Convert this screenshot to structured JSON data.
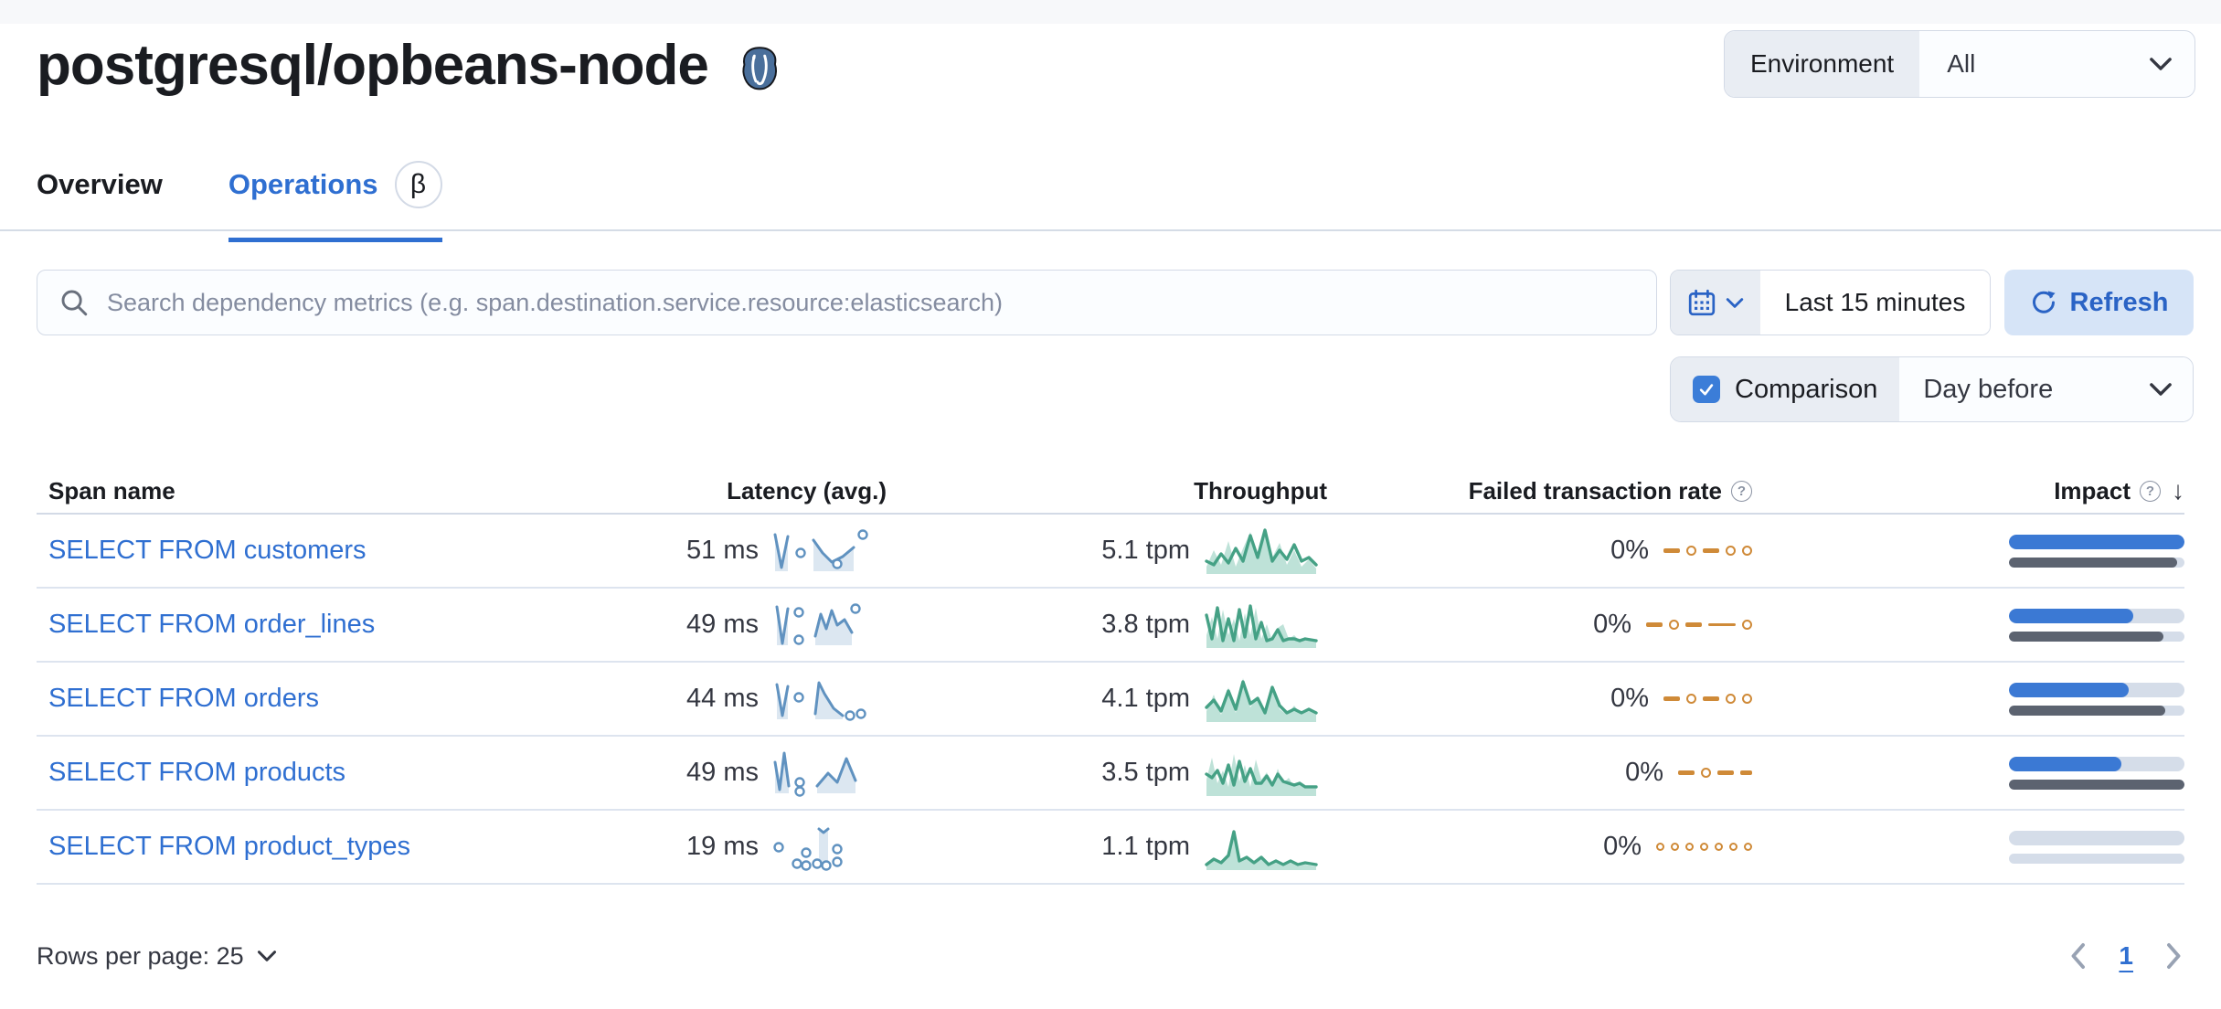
{
  "header": {
    "title": "postgresql/opbeans-node",
    "environment_label": "Environment",
    "environment_value": "All"
  },
  "tabs": {
    "overview": "Overview",
    "operations": "Operations",
    "beta_badge": "β"
  },
  "controls": {
    "search_placeholder": "Search dependency metrics (e.g. span.destination.service.resource:elasticsearch)",
    "time_range": "Last 15 minutes",
    "refresh_label": "Refresh",
    "comparison_label": "Comparison",
    "comparison_value": "Day before",
    "comparison_checked": true
  },
  "table": {
    "headers": {
      "span_name": "Span name",
      "latency": "Latency (avg.)",
      "throughput": "Throughput",
      "failed_rate": "Failed transaction rate",
      "impact": "Impact"
    },
    "sort_glyph": "↓",
    "rows": [
      {
        "name": "SELECT FROM customers",
        "latency": "51 ms",
        "throughput": "5.1 tpm",
        "failed": "0%",
        "latency_spark": {
          "segs": [
            [
              [
                2,
                10
              ],
              [
                9,
                46
              ],
              [
                16,
                12
              ]
            ],
            [
              [
                44,
                16
              ],
              [
                54,
                30
              ],
              [
                64,
                40
              ],
              [
                76,
                34
              ],
              [
                88,
                24
              ]
            ]
          ],
          "dots": [
            [
              30,
              30
            ],
            [
              70,
              42
            ],
            [
              98,
              10
            ]
          ]
        },
        "throughput_spark": {
          "area": [
            [
              2,
              46
            ],
            [
              10,
              28
            ],
            [
              18,
              44
            ],
            [
              26,
              18
            ],
            [
              34,
              46
            ],
            [
              42,
              26
            ],
            [
              50,
              8
            ],
            [
              58,
              38
            ],
            [
              66,
              10
            ],
            [
              74,
              36
            ],
            [
              82,
              20
            ],
            [
              90,
              44
            ],
            [
              98,
              28
            ],
            [
              106,
              46
            ],
            [
              114,
              38
            ],
            [
              122,
              48
            ]
          ],
          "line": [
            [
              2,
              40
            ],
            [
              10,
              44
            ],
            [
              18,
              32
            ],
            [
              26,
              42
            ],
            [
              34,
              26
            ],
            [
              42,
              40
            ],
            [
              50,
              12
            ],
            [
              58,
              36
            ],
            [
              66,
              6
            ],
            [
              74,
              40
            ],
            [
              82,
              28
            ],
            [
              90,
              38
            ],
            [
              98,
              22
            ],
            [
              106,
              40
            ],
            [
              114,
              36
            ],
            [
              122,
              44
            ]
          ]
        },
        "failed_spark": [
          "dash",
          "dot",
          "dash",
          "dot",
          "dot"
        ],
        "impact": {
          "current": 100,
          "previous": 96
        }
      },
      {
        "name": "SELECT FROM order_lines",
        "latency": "49 ms",
        "throughput": "3.8 tpm",
        "failed": "0%",
        "latency_spark": {
          "segs": [
            [
              [
                4,
                8
              ],
              [
                10,
                48
              ],
              [
                16,
                10
              ]
            ],
            [
              [
                46,
                40
              ],
              [
                52,
                16
              ],
              [
                58,
                32
              ],
              [
                64,
                12
              ],
              [
                70,
                28
              ],
              [
                78,
                22
              ],
              [
                86,
                36
              ]
            ]
          ],
          "dots": [
            [
              28,
              14
            ],
            [
              28,
              44
            ],
            [
              90,
              10
            ]
          ]
        },
        "throughput_spark": {
          "area": [
            [
              2,
              40
            ],
            [
              8,
              20
            ],
            [
              14,
              44
            ],
            [
              20,
              12
            ],
            [
              26,
              40
            ],
            [
              32,
              22
            ],
            [
              38,
              46
            ],
            [
              44,
              16
            ],
            [
              50,
              40
            ],
            [
              56,
              10
            ],
            [
              62,
              44
            ],
            [
              68,
              28
            ],
            [
              74,
              46
            ],
            [
              80,
              32
            ],
            [
              86,
              28
            ],
            [
              92,
              44
            ],
            [
              98,
              40
            ],
            [
              104,
              46
            ],
            [
              110,
              44
            ],
            [
              122,
              46
            ]
          ],
          "line": [
            [
              2,
              18
            ],
            [
              8,
              44
            ],
            [
              14,
              10
            ],
            [
              20,
              46
            ],
            [
              26,
              22
            ],
            [
              32,
              46
            ],
            [
              38,
              12
            ],
            [
              44,
              42
            ],
            [
              50,
              8
            ],
            [
              56,
              44
            ],
            [
              62,
              26
            ],
            [
              68,
              46
            ],
            [
              74,
              44
            ],
            [
              80,
              34
            ],
            [
              86,
              46
            ],
            [
              92,
              44
            ],
            [
              98,
              44
            ],
            [
              104,
              46
            ],
            [
              110,
              44
            ],
            [
              122,
              46
            ]
          ]
        },
        "failed_spark": [
          "dash",
          "dot",
          "dash",
          "ldash",
          "dot"
        ],
        "impact": {
          "current": 71,
          "previous": 88
        }
      },
      {
        "name": "SELECT FROM orders",
        "latency": "44 ms",
        "throughput": "4.1 tpm",
        "failed": "0%",
        "latency_spark": {
          "segs": [
            [
              [
                4,
                12
              ],
              [
                10,
                46
              ],
              [
                16,
                14
              ]
            ],
            [
              [
                46,
                44
              ],
              [
                50,
                10
              ],
              [
                56,
                22
              ],
              [
                66,
                38
              ],
              [
                76,
                46
              ]
            ]
          ],
          "dots": [
            [
              28,
              26
            ],
            [
              84,
              46
            ],
            [
              96,
              44
            ]
          ]
        },
        "throughput_spark": {
          "area": [
            [
              2,
              42
            ],
            [
              10,
              24
            ],
            [
              18,
              46
            ],
            [
              26,
              16
            ],
            [
              34,
              44
            ],
            [
              42,
              6
            ],
            [
              50,
              38
            ],
            [
              58,
              26
            ],
            [
              66,
              46
            ],
            [
              74,
              20
            ],
            [
              82,
              40
            ],
            [
              90,
              46
            ],
            [
              98,
              36
            ],
            [
              106,
              46
            ],
            [
              114,
              42
            ],
            [
              122,
              46
            ]
          ],
          "line": [
            [
              2,
              38
            ],
            [
              10,
              30
            ],
            [
              18,
              42
            ],
            [
              26,
              20
            ],
            [
              34,
              40
            ],
            [
              42,
              10
            ],
            [
              50,
              34
            ],
            [
              58,
              28
            ],
            [
              66,
              44
            ],
            [
              74,
              16
            ],
            [
              82,
              36
            ],
            [
              90,
              44
            ],
            [
              98,
              40
            ],
            [
              106,
              44
            ],
            [
              114,
              40
            ],
            [
              122,
              44
            ]
          ]
        },
        "failed_spark": [
          "dash",
          "dot",
          "dash",
          "dot",
          "dot"
        ],
        "impact": {
          "current": 68,
          "previous": 89
        }
      },
      {
        "name": "SELECT FROM products",
        "latency": "49 ms",
        "throughput": "3.5 tpm",
        "failed": "0%",
        "latency_spark": {
          "segs": [
            [
              [
                2,
                16
              ],
              [
                7,
                46
              ],
              [
                12,
                6
              ],
              [
                17,
                42
              ]
            ],
            [
              [
                48,
                42
              ],
              [
                60,
                28
              ],
              [
                70,
                38
              ],
              [
                80,
                12
              ],
              [
                90,
                36
              ]
            ]
          ],
          "dots": [
            [
              29,
              38
            ],
            [
              29,
              48
            ]
          ]
        },
        "throughput_spark": {
          "area": [
            [
              2,
              36
            ],
            [
              8,
              12
            ],
            [
              14,
              40
            ],
            [
              20,
              26
            ],
            [
              26,
              44
            ],
            [
              32,
              8
            ],
            [
              38,
              38
            ],
            [
              44,
              20
            ],
            [
              50,
              44
            ],
            [
              56,
              14
            ],
            [
              62,
              36
            ],
            [
              68,
              28
            ],
            [
              74,
              44
            ],
            [
              80,
              24
            ],
            [
              86,
              40
            ],
            [
              92,
              34
            ],
            [
              98,
              44
            ],
            [
              104,
              38
            ],
            [
              110,
              46
            ],
            [
              122,
              46
            ]
          ],
          "line": [
            [
              2,
              30
            ],
            [
              8,
              34
            ],
            [
              14,
              26
            ],
            [
              20,
              40
            ],
            [
              26,
              20
            ],
            [
              32,
              42
            ],
            [
              38,
              16
            ],
            [
              44,
              38
            ],
            [
              50,
              24
            ],
            [
              56,
              40
            ],
            [
              62,
              40
            ],
            [
              68,
              32
            ],
            [
              74,
              42
            ],
            [
              80,
              30
            ],
            [
              86,
              38
            ],
            [
              92,
              40
            ],
            [
              98,
              42
            ],
            [
              104,
              40
            ],
            [
              110,
              44
            ],
            [
              122,
              44
            ]
          ]
        },
        "failed_spark": [
          "dash",
          "dot",
          "dash",
          "sdash"
        ],
        "impact": {
          "current": 64,
          "previous": 100
        }
      },
      {
        "name": "SELECT FROM product_types",
        "latency": "19 ms",
        "throughput": "1.1 tpm",
        "failed": "0%",
        "latency_spark": {
          "segs": [
            [
              [
                50,
                8
              ],
              [
                55,
                12
              ],
              [
                60,
                8
              ]
            ]
          ],
          "dots": [
            [
              6,
              28
            ],
            [
              26,
              46
            ],
            [
              36,
              34
            ],
            [
              36,
              48
            ],
            [
              48,
              46
            ],
            [
              58,
              48
            ],
            [
              70,
              30
            ],
            [
              70,
              44
            ]
          ]
        },
        "throughput_spark": {
          "area": [
            [
              2,
              50
            ],
            [
              10,
              44
            ],
            [
              18,
              48
            ],
            [
              26,
              40
            ],
            [
              32,
              16
            ],
            [
              38,
              46
            ],
            [
              46,
              42
            ],
            [
              54,
              48
            ],
            [
              62,
              42
            ],
            [
              70,
              50
            ],
            [
              78,
              46
            ],
            [
              86,
              50
            ],
            [
              94,
              46
            ],
            [
              102,
              50
            ],
            [
              110,
              48
            ],
            [
              122,
              50
            ]
          ],
          "line": [
            [
              2,
              48
            ],
            [
              10,
              42
            ],
            [
              18,
              46
            ],
            [
              26,
              38
            ],
            [
              32,
              12
            ],
            [
              38,
              44
            ],
            [
              46,
              40
            ],
            [
              54,
              46
            ],
            [
              62,
              40
            ],
            [
              70,
              48
            ],
            [
              78,
              44
            ],
            [
              86,
              48
            ],
            [
              94,
              44
            ],
            [
              102,
              48
            ],
            [
              110,
              46
            ],
            [
              122,
              48
            ]
          ]
        },
        "failed_spark": [
          "sdot",
          "sdot",
          "sdot",
          "sdot",
          "sdot",
          "sdot",
          "sdot"
        ],
        "impact": {
          "current": 0,
          "previous": 0
        }
      }
    ]
  },
  "footer": {
    "rows_per_page": "Rows per page: 25",
    "page_number": "1"
  },
  "icons": {
    "logo": "postgresql-elephant",
    "search": "magnifier",
    "calendar": "calendar",
    "refresh": "circular-arrow",
    "help": "question-circle",
    "sort": "arrow-down",
    "select_chevron": "chevron-down",
    "pagination_prev": "chevron-left",
    "pagination_next": "chevron-right",
    "checkbox": "checkmark"
  },
  "colors": {
    "link_blue": "#2f6fd1",
    "impact_blue": "#3b79d4",
    "impact_previous": "#5c6370",
    "track": "#d5dde9",
    "latency_blue": "#6092c0",
    "latency_fill": "rgba(96,146,192,0.22)",
    "throughput_green": "#45a185",
    "throughput_fill": "rgba(84,179,153,0.38)",
    "failed_orange": "#cf8a38",
    "refresh_bg": "#d6e4f7",
    "form_prepend": "#e9edf3",
    "border": "#d3dae6"
  }
}
